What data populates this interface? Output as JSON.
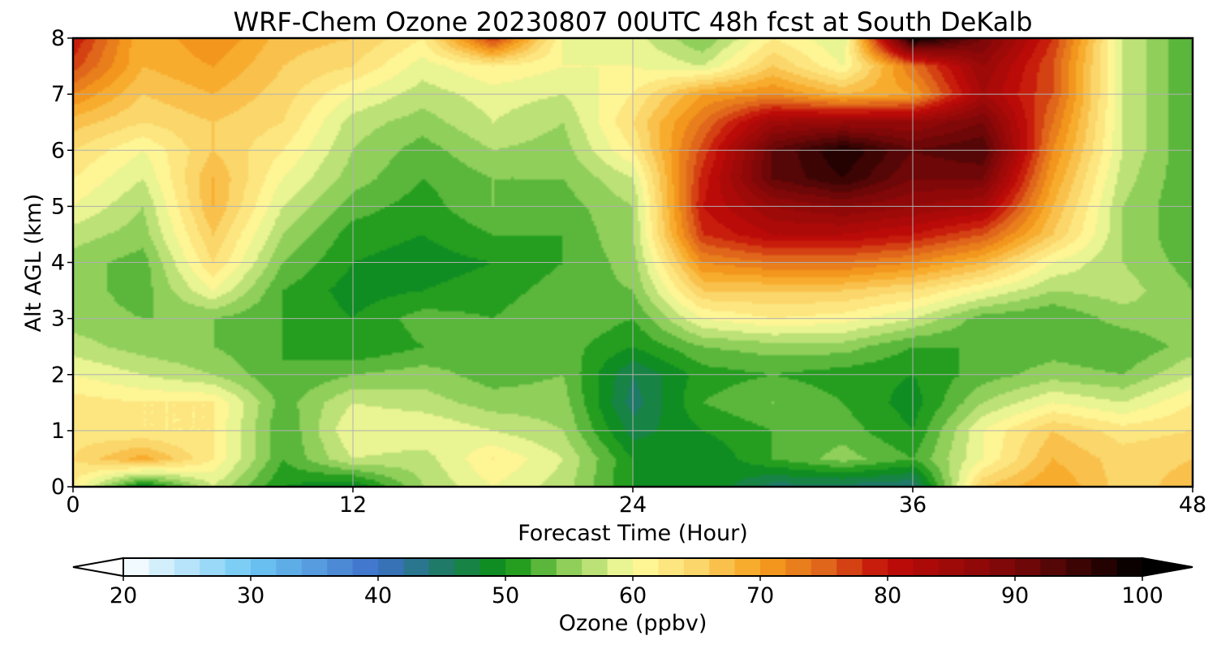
{
  "chart_data": {
    "type": "heatmap",
    "title": "WRF-Chem Ozone  20230807 00UTC 48h fcst at South DeKalb",
    "xlabel": "Forecast Time (Hour)",
    "ylabel": "Alt AGL (km)",
    "xlim": [
      0,
      48
    ],
    "ylim": [
      0,
      8
    ],
    "x_ticks": [
      0,
      12,
      24,
      36,
      48
    ],
    "y_ticks": [
      0,
      1,
      2,
      3,
      4,
      5,
      6,
      7,
      8
    ],
    "grid": true,
    "colorbar": {
      "label": "Ozone  (ppbv)",
      "ticks": [
        20,
        30,
        40,
        50,
        60,
        70,
        80,
        90,
        100
      ],
      "range": [
        20,
        100
      ],
      "extend": "both",
      "orientation": "horizontal",
      "position": "bottom",
      "stops": [
        {
          "value": 20,
          "color": "#ffffff"
        },
        {
          "value": 30,
          "color": "#6ec8f4"
        },
        {
          "value": 40,
          "color": "#3d6fc9"
        },
        {
          "value": 45,
          "color": "#1f7a68"
        },
        {
          "value": 50,
          "color": "#0b9210"
        },
        {
          "value": 55,
          "color": "#8fcf5a"
        },
        {
          "value": 60,
          "color": "#fffda0"
        },
        {
          "value": 65,
          "color": "#fbd66a"
        },
        {
          "value": 70,
          "color": "#f7a21e"
        },
        {
          "value": 75,
          "color": "#e0661b"
        },
        {
          "value": 80,
          "color": "#c20b08"
        },
        {
          "value": 90,
          "color": "#7a0808"
        },
        {
          "value": 100,
          "color": "#000000"
        }
      ]
    },
    "heights_km": [
      0,
      0.5,
      1,
      1.5,
      2,
      2.5,
      3,
      3.5,
      4,
      4.5,
      5,
      5.5,
      6,
      6.5,
      7,
      7.5,
      8
    ],
    "hours": [
      0,
      3,
      6,
      9,
      12,
      15,
      18,
      21,
      24,
      27,
      30,
      33,
      36,
      39,
      42,
      45,
      48
    ],
    "ozone_ppbv": [
      [
        62,
        48,
        58,
        50,
        48,
        56,
        60,
        57,
        50,
        50,
        45,
        45,
        44,
        66,
        70,
        65,
        67
      ],
      [
        64,
        69,
        62,
        52,
        58,
        57,
        62,
        58,
        50,
        48,
        52,
        55,
        52,
        60,
        68,
        65,
        66
      ],
      [
        63,
        62,
        62,
        52,
        60,
        60,
        58,
        56,
        47,
        50,
        52,
        53,
        50,
        60,
        66,
        63,
        64
      ],
      [
        63,
        62,
        62,
        53,
        58,
        57,
        55,
        55,
        45,
        52,
        54,
        52,
        49,
        56,
        60,
        58,
        62
      ],
      [
        60,
        58,
        56,
        52,
        54,
        55,
        53,
        54,
        46,
        51,
        52,
        51,
        50,
        53,
        55,
        54,
        58
      ],
      [
        57,
        55,
        54,
        52,
        50,
        52,
        53,
        53,
        50,
        54,
        55,
        55,
        52,
        52,
        53,
        52,
        55
      ],
      [
        55,
        54,
        54,
        52,
        50,
        53,
        52,
        54,
        52,
        60,
        62,
        61,
        58,
        53,
        52,
        55,
        56
      ],
      [
        55,
        53,
        60,
        52,
        49,
        50,
        51,
        53,
        54,
        66,
        66,
        66,
        64,
        60,
        56,
        57,
        54
      ],
      [
        55,
        53,
        64,
        54,
        50,
        49,
        50,
        52,
        55,
        72,
        74,
        74,
        72,
        68,
        60,
        56,
        53
      ],
      [
        57,
        55,
        66,
        56,
        51,
        50,
        52,
        52,
        56,
        78,
        82,
        82,
        80,
        76,
        66,
        56,
        52
      ],
      [
        60,
        56,
        68,
        58,
        53,
        51,
        54,
        53,
        56,
        80,
        86,
        88,
        86,
        84,
        68,
        56,
        52
      ],
      [
        62,
        58,
        68,
        60,
        55,
        52,
        54,
        54,
        58,
        79,
        92,
        96,
        90,
        90,
        70,
        57,
        52
      ],
      [
        64,
        60,
        66,
        62,
        56,
        53,
        56,
        55,
        62,
        77,
        92,
        98,
        92,
        94,
        72,
        58,
        52
      ],
      [
        67,
        64,
        66,
        64,
        57,
        55,
        58,
        56,
        64,
        74,
        85,
        86,
        86,
        90,
        74,
        58,
        52
      ],
      [
        72,
        66,
        68,
        65,
        60,
        57,
        59,
        58,
        62,
        70,
        72,
        68,
        70,
        84,
        76,
        58,
        52
      ],
      [
        77,
        68,
        70,
        66,
        64,
        59,
        62,
        60,
        60,
        58,
        66,
        60,
        74,
        86,
        76,
        58,
        52
      ],
      [
        80,
        68,
        72,
        67,
        66,
        62,
        78,
        60,
        59,
        54,
        62,
        58,
        100,
        90,
        78,
        58,
        52
      ]
    ]
  }
}
